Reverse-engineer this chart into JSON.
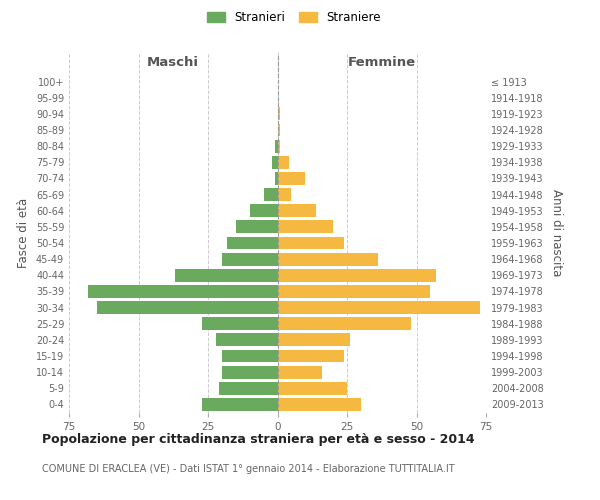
{
  "age_groups": [
    "0-4",
    "5-9",
    "10-14",
    "15-19",
    "20-24",
    "25-29",
    "30-34",
    "35-39",
    "40-44",
    "45-49",
    "50-54",
    "55-59",
    "60-64",
    "65-69",
    "70-74",
    "75-79",
    "80-84",
    "85-89",
    "90-94",
    "95-99",
    "100+"
  ],
  "birth_years": [
    "2009-2013",
    "2004-2008",
    "1999-2003",
    "1994-1998",
    "1989-1993",
    "1984-1988",
    "1979-1983",
    "1974-1978",
    "1969-1973",
    "1964-1968",
    "1959-1963",
    "1954-1958",
    "1949-1953",
    "1944-1948",
    "1939-1943",
    "1934-1938",
    "1929-1933",
    "1924-1928",
    "1919-1923",
    "1914-1918",
    "≤ 1913"
  ],
  "maschi": [
    27,
    21,
    20,
    20,
    22,
    27,
    65,
    68,
    37,
    20,
    18,
    15,
    10,
    5,
    1,
    2,
    1,
    0,
    0,
    0,
    0
  ],
  "femmine": [
    30,
    25,
    16,
    24,
    26,
    48,
    73,
    55,
    57,
    36,
    24,
    20,
    14,
    5,
    10,
    4,
    1,
    1,
    1,
    0,
    0
  ],
  "maschi_color": "#6aaa5e",
  "femmine_color": "#f5b942",
  "background_color": "#ffffff",
  "grid_color": "#cccccc",
  "title": "Popolazione per cittadinanza straniera per età e sesso - 2014",
  "subtitle": "COMUNE DI ERACLEA (VE) - Dati ISTAT 1° gennaio 2014 - Elaborazione TUTTITALIA.IT",
  "ylabel_left": "Fasce di età",
  "ylabel_right": "Anni di nascita",
  "xlabel_left": "Maschi",
  "xlabel_right": "Femmine",
  "legend_maschi": "Stranieri",
  "legend_femmine": "Straniere",
  "xlim": 75
}
